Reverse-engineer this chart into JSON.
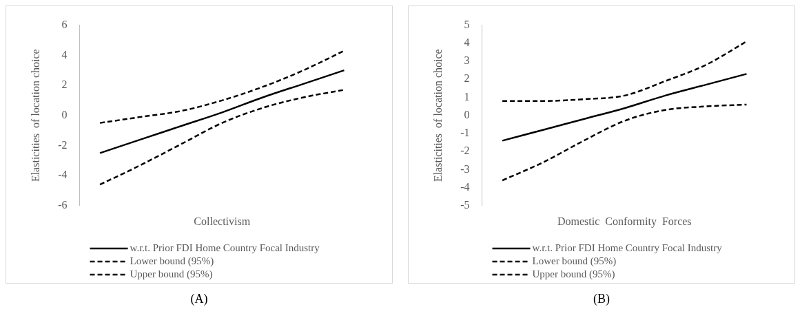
{
  "chart_data": [
    {
      "type": "line",
      "xlabel": "Collectivism",
      "ylabel": "Elasticities  of location choice",
      "categories": [
        null,
        null,
        null,
        null,
        null,
        null,
        null
      ],
      "ylim": [
        -6,
        6
      ],
      "yticks": [
        -6,
        -4,
        -2,
        0,
        2,
        4,
        6
      ],
      "grid": false,
      "tick_labels": "y",
      "legend": "bottom",
      "marker": "none",
      "annotations": [
        "(A)"
      ],
      "series": [
        {
          "name": "w.r.t. Prior FDI Home Country Focal Industry",
          "color": "#000000",
          "line_style": "solid",
          "values": [
            -2.5,
            -1.6,
            -0.7,
            0.2,
            1.2,
            2.1,
            3.0
          ]
        },
        {
          "name": "Lower bound (95%)",
          "color": "#000000",
          "line_style": "dashed",
          "values": [
            -4.6,
            -3.3,
            -1.9,
            -0.5,
            0.5,
            1.2,
            1.7
          ]
        },
        {
          "name": "Upper bound (95%)",
          "color": "#000000",
          "line_style": "dashed",
          "values": [
            -0.5,
            -0.1,
            0.3,
            1.0,
            1.9,
            3.0,
            4.3
          ]
        }
      ]
    },
    {
      "type": "line",
      "xlabel": "Domestic  Conformity  Forces",
      "ylabel": "Elasticities  of location choice",
      "categories": [
        null,
        null,
        null,
        null,
        null,
        null,
        null
      ],
      "ylim": [
        -5,
        5
      ],
      "yticks": [
        -5,
        -4,
        -3,
        -2,
        -1,
        0,
        1,
        2,
        3,
        4,
        5
      ],
      "grid": false,
      "tick_labels": "y",
      "legend": "bottom",
      "marker": "none",
      "annotations": [
        "(B)"
      ],
      "series": [
        {
          "name": "w.r.t. Prior FDI Home Country Focal Industry",
          "color": "#000000",
          "line_style": "solid",
          "values": [
            -1.4,
            -0.8,
            -0.2,
            0.4,
            1.1,
            1.7,
            2.3
          ]
        },
        {
          "name": "Lower bound (95%)",
          "color": "#000000",
          "line_style": "dashed",
          "values": [
            -3.6,
            -2.6,
            -1.4,
            -0.3,
            0.3,
            0.5,
            0.6
          ]
        },
        {
          "name": "Upper bound (95%)",
          "color": "#000000",
          "line_style": "dashed",
          "values": [
            0.8,
            0.8,
            0.9,
            1.1,
            1.9,
            2.8,
            4.1
          ]
        }
      ]
    }
  ]
}
